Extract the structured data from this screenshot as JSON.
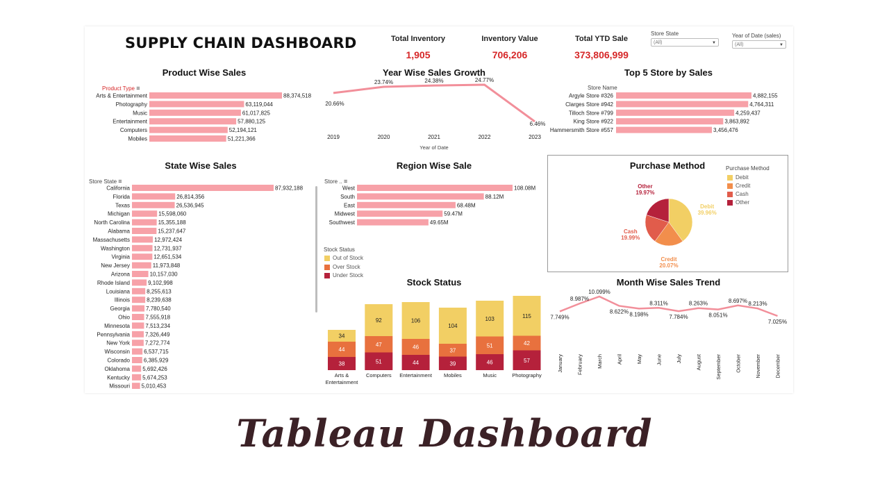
{
  "dashboard_title": "SUPPLY CHAIN DASHBOARD",
  "footer_title": "Tableau Dashboard",
  "kpis": [
    {
      "label": "Total Inventory",
      "value": "1,905"
    },
    {
      "label": "Inventory Value",
      "value": "706,206"
    },
    {
      "label": "Total YTD Sale",
      "value": "373,806,999"
    }
  ],
  "filters": [
    {
      "label": "Store State",
      "value": "(All)"
    },
    {
      "label": "Year of Date (sales)",
      "value": "(All)"
    }
  ],
  "colors": {
    "bar": "#f7a1a8",
    "kpi": "#d62728",
    "debit": "#f2cf64",
    "credit": "#f28e4c",
    "cash": "#e15c4b",
    "other": "#b5213b",
    "line": "#f28f9a"
  },
  "product_wise_sales": {
    "title": "Product Wise Sales",
    "header": "Product Type",
    "rows": [
      {
        "label": "Arts & Entertainment",
        "value": 88374518,
        "text": "88,374,518"
      },
      {
        "label": "Photography",
        "value": 63119044,
        "text": "63,119,044"
      },
      {
        "label": "Music",
        "value": 61017825,
        "text": "61,017,825"
      },
      {
        "label": "Entertainment",
        "value": 57880125,
        "text": "57,880,125"
      },
      {
        "label": "Computers",
        "value": 52194121,
        "text": "52,194,121"
      },
      {
        "label": "Mobiles",
        "value": 51221366,
        "text": "51,221,366"
      }
    ]
  },
  "year_wise_growth": {
    "title": "Year Wise Sales Growth",
    "xlabel": "Year of Date",
    "points": [
      {
        "year": "2019",
        "value": 20.66,
        "text": "20.66%"
      },
      {
        "year": "2020",
        "value": 23.74,
        "text": "23.74%"
      },
      {
        "year": "2021",
        "value": 24.38,
        "text": "24.38%"
      },
      {
        "year": "2022",
        "value": 24.77,
        "text": "24.77%"
      },
      {
        "year": "2023",
        "value": 6.46,
        "text": "6.46%"
      }
    ]
  },
  "top5_stores": {
    "title": "Top 5 Store by Sales",
    "header": "Store Name",
    "rows": [
      {
        "label": "Argyle Store #326",
        "value": 4882155,
        "text": "4,882,155"
      },
      {
        "label": "Clarges Store #942",
        "value": 4764311,
        "text": "4,764,311"
      },
      {
        "label": "Tilloch Store #799",
        "value": 4259437,
        "text": "4,259,437"
      },
      {
        "label": "King Store #922",
        "value": 3863892,
        "text": "3,863,892"
      },
      {
        "label": "Hammersmith Store #557",
        "value": 3456476,
        "text": "3,456,476"
      }
    ]
  },
  "state_wise_sales": {
    "title": "State Wise Sales",
    "header": "Store State",
    "rows": [
      {
        "label": "California",
        "value": 87932188,
        "text": "87,932,188"
      },
      {
        "label": "Florida",
        "value": 26814356,
        "text": "26,814,356"
      },
      {
        "label": "Texas",
        "value": 26536945,
        "text": "26,536,945"
      },
      {
        "label": "Michigan",
        "value": 15598060,
        "text": "15,598,060"
      },
      {
        "label": "North Carolina",
        "value": 15355188,
        "text": "15,355,188"
      },
      {
        "label": "Alabama",
        "value": 15237647,
        "text": "15,237,647"
      },
      {
        "label": "Massachusetts",
        "value": 12972424,
        "text": "12,972,424"
      },
      {
        "label": "Washington",
        "value": 12731937,
        "text": "12,731,937"
      },
      {
        "label": "Virginia",
        "value": 12651534,
        "text": "12,651,534"
      },
      {
        "label": "New Jersey",
        "value": 11973848,
        "text": "11,973,848"
      },
      {
        "label": "Arizona",
        "value": 10157030,
        "text": "10,157,030"
      },
      {
        "label": "Rhode Island",
        "value": 9102998,
        "text": "9,102,998"
      },
      {
        "label": "Louisiana",
        "value": 8255613,
        "text": "8,255,613"
      },
      {
        "label": "Illinois",
        "value": 8239638,
        "text": "8,239,638"
      },
      {
        "label": "Georgia",
        "value": 7780540,
        "text": "7,780,540"
      },
      {
        "label": "Ohio",
        "value": 7555918,
        "text": "7,555,918"
      },
      {
        "label": "Minnesota",
        "value": 7513234,
        "text": "7,513,234"
      },
      {
        "label": "Pennsylvania",
        "value": 7326449,
        "text": "7,326,449"
      },
      {
        "label": "New York",
        "value": 7272774,
        "text": "7,272,774"
      },
      {
        "label": "Wisconsin",
        "value": 6537715,
        "text": "6,537,715"
      },
      {
        "label": "Colorado",
        "value": 6385929,
        "text": "6,385,929"
      },
      {
        "label": "Oklahoma",
        "value": 5692426,
        "text": "5,692,426"
      },
      {
        "label": "Kentucky",
        "value": 5674253,
        "text": "5,674,253"
      },
      {
        "label": "Missouri",
        "value": 5010453,
        "text": "5,010,453"
      }
    ]
  },
  "region_wise_sale": {
    "title": "Region Wise Sale",
    "header": "Store ..",
    "rows": [
      {
        "label": "West",
        "value": 108.08,
        "text": "108.08M"
      },
      {
        "label": "South",
        "value": 88.12,
        "text": "88.12M"
      },
      {
        "label": "East",
        "value": 68.48,
        "text": "68.48M"
      },
      {
        "label": "Midwest",
        "value": 59.47,
        "text": "59.47M"
      },
      {
        "label": "Southwest",
        "value": 49.65,
        "text": "49.65M"
      }
    ]
  },
  "stock_status": {
    "title": "Stock Status",
    "legend_title": "Stock Status",
    "legend": [
      "Out of Stock",
      "Over Stock",
      "Under Stock"
    ],
    "categories": [
      {
        "label": "Arts &\nEntertainment",
        "under": 38,
        "over": 44,
        "out": 34
      },
      {
        "label": "Computers",
        "under": 51,
        "over": 47,
        "out": 92
      },
      {
        "label": "Entertainment",
        "under": 44,
        "over": 46,
        "out": 106
      },
      {
        "label": "Mobiles",
        "under": 39,
        "over": 37,
        "out": 104
      },
      {
        "label": "Music",
        "under": 46,
        "over": 51,
        "out": 103
      },
      {
        "label": "Photography",
        "under": 57,
        "over": 42,
        "out": 115
      }
    ]
  },
  "purchase_method": {
    "title": "Purchase Method",
    "legend_title": "Purchase Method",
    "slices": [
      {
        "name": "Debit",
        "value": 39.96,
        "text": "39.96%"
      },
      {
        "name": "Credit",
        "value": 20.07,
        "text": "20.07%"
      },
      {
        "name": "Cash",
        "value": 19.99,
        "text": "19.99%"
      },
      {
        "name": "Other",
        "value": 19.97,
        "text": "19.97%"
      }
    ]
  },
  "month_trend": {
    "title": "Month Wise Sales Trend",
    "points": [
      {
        "month": "January",
        "value": 7.749,
        "text": "7.749%"
      },
      {
        "month": "February",
        "value": 8.987,
        "text": "8.987%"
      },
      {
        "month": "March",
        "value": 10.099,
        "text": "10.099%"
      },
      {
        "month": "April",
        "value": 8.622,
        "text": "8.622%"
      },
      {
        "month": "May",
        "value": 8.198,
        "text": "8.198%"
      },
      {
        "month": "June",
        "value": 8.311,
        "text": "8.311%"
      },
      {
        "month": "July",
        "value": 7.784,
        "text": "7.784%"
      },
      {
        "month": "August",
        "value": 8.263,
        "text": "8.263%"
      },
      {
        "month": "September",
        "value": 8.051,
        "text": "8.051%"
      },
      {
        "month": "October",
        "value": 8.697,
        "text": "8.697%"
      },
      {
        "month": "November",
        "value": 8.213,
        "text": "8.213%"
      },
      {
        "month": "December",
        "value": 7.025,
        "text": "7.025%"
      }
    ]
  }
}
